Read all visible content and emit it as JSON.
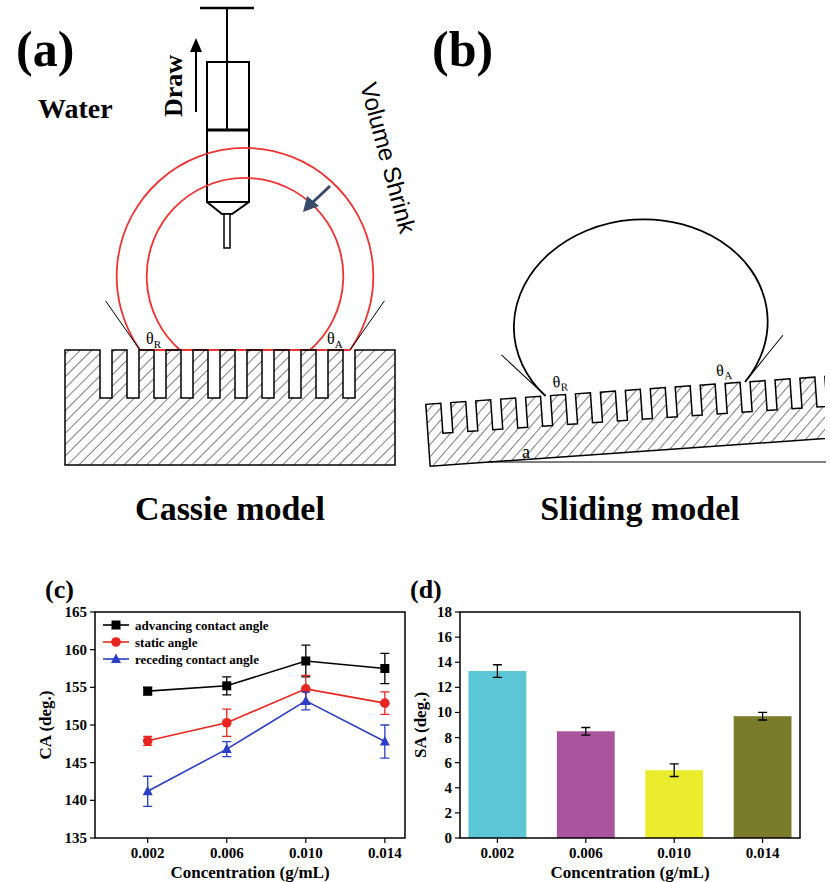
{
  "diagrams": [
    {
      "label": "(a)",
      "arrow_text": "Draw",
      "medium": "Water",
      "annotation": "Volume Shrink",
      "angle_receding": "θR",
      "angle_advancing": "θA",
      "caption": "Cassie model"
    },
    {
      "label": "(b)",
      "angle_receding": "θR",
      "angle_advancing": "θA",
      "tilt_label": "a",
      "caption": "Sliding model"
    }
  ],
  "chart_data": [
    {
      "type": "line",
      "title": "(c)",
      "x_label": "Concentration (g/mL)",
      "y_label": "CA (deg.)",
      "categories": [
        "0.002",
        "0.006",
        "0.010",
        "0.014"
      ],
      "series": [
        {
          "name": "advancing contact angle",
          "color": "#000000",
          "marker": "square",
          "values": [
            154.5,
            155.2,
            158.5,
            157.5
          ],
          "errors": [
            0.5,
            1.2,
            2.1,
            2.0
          ]
        },
        {
          "name": "static angle",
          "color": "#e8251f",
          "marker": "circle",
          "values": [
            147.9,
            150.3,
            154.8,
            152.9
          ],
          "errors": [
            0.6,
            1.8,
            1.8,
            1.5
          ]
        },
        {
          "name": "receding contact angle",
          "color": "#2a3fc4",
          "marker": "triangle",
          "values": [
            141.2,
            146.8,
            153.2,
            147.8
          ],
          "errors": [
            2.0,
            1.0,
            1.2,
            2.2
          ]
        }
      ],
      "ylim": [
        135,
        165
      ],
      "yticks": [
        135,
        140,
        145,
        150,
        155,
        160,
        165
      ],
      "legend": "upper left"
    },
    {
      "type": "bar",
      "title": "(d)",
      "x_label": "Concentration (g/mL)",
      "y_label": "SA (deg.)",
      "categories": [
        "0.002",
        "0.006",
        "0.010",
        "0.014"
      ],
      "values": [
        13.3,
        8.5,
        5.4,
        9.7
      ],
      "errors": [
        0.5,
        0.3,
        0.5,
        0.3
      ],
      "colors": [
        "#5bc6d6",
        "#a8559e",
        "#ecec2e",
        "#7b7b2c"
      ],
      "ylim": [
        0,
        18
      ],
      "yticks": [
        0,
        2,
        4,
        6,
        8,
        10,
        12,
        14,
        16,
        18
      ]
    }
  ]
}
